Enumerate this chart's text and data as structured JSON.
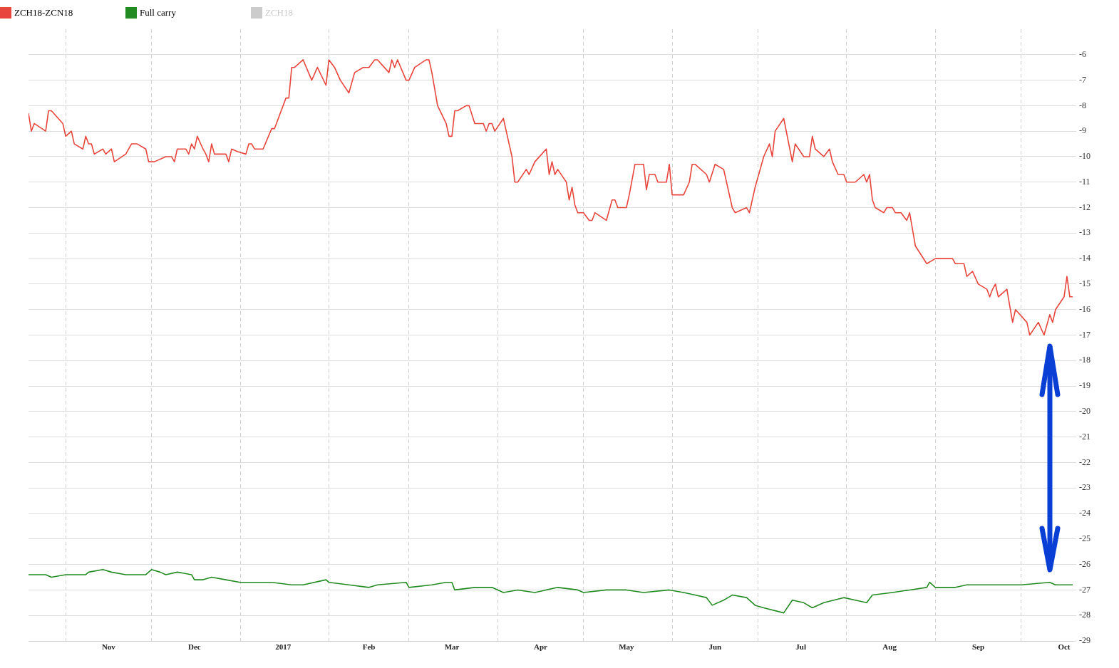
{
  "chart_data": {
    "type": "line",
    "legend": "top left",
    "grid": true,
    "marker": "none",
    "line_style": "solid",
    "xlim": [
      "2016-10-19",
      "2017-10-19"
    ],
    "xticks": [
      {
        "value": "2016-11-01",
        "label": null
      },
      {
        "value": "2016-11-16",
        "label": "Nov"
      },
      {
        "value": "2016-12-01",
        "label": null
      },
      {
        "value": "2016-12-16",
        "label": "Dec"
      },
      {
        "value": "2017-01-01",
        "label": null
      },
      {
        "value": "2017-01-16",
        "label": "2017"
      },
      {
        "value": "2017-02-01",
        "label": null
      },
      {
        "value": "2017-02-15",
        "label": "Feb"
      },
      {
        "value": "2017-03-01",
        "label": null
      },
      {
        "value": "2017-03-16",
        "label": "Mar"
      },
      {
        "value": "2017-04-01",
        "label": null
      },
      {
        "value": "2017-04-16",
        "label": "Apr"
      },
      {
        "value": "2017-05-01",
        "label": null
      },
      {
        "value": "2017-05-16",
        "label": "May"
      },
      {
        "value": "2017-06-01",
        "label": null
      },
      {
        "value": "2017-06-16",
        "label": "Jun"
      },
      {
        "value": "2017-07-01",
        "label": null
      },
      {
        "value": "2017-07-16",
        "label": "Jul"
      },
      {
        "value": "2017-08-01",
        "label": null
      },
      {
        "value": "2017-08-16",
        "label": "Aug"
      },
      {
        "value": "2017-09-01",
        "label": null
      },
      {
        "value": "2017-09-16",
        "label": "Sep"
      },
      {
        "value": "2017-10-01",
        "label": null
      },
      {
        "value": "2017-10-16",
        "label": "Oct"
      }
    ],
    "ylim": [
      -29,
      -5
    ],
    "yticks": [
      -6,
      -7,
      -8,
      -9,
      -10,
      -11,
      -12,
      -13,
      -14,
      -15,
      -16,
      -17,
      -18,
      -19,
      -20,
      -21,
      -22,
      -23,
      -24,
      -25,
      -26,
      -27,
      -28,
      -29
    ],
    "series": [
      {
        "name": "ZCH18-ZCN18",
        "color": "#e8453c",
        "x": [
          "2016-10-19",
          "2016-10-20",
          "2016-10-21",
          "2016-10-25",
          "2016-10-26",
          "2016-10-27",
          "2016-10-31",
          "2016-11-01",
          "2016-11-03",
          "2016-11-04",
          "2016-11-07",
          "2016-11-08",
          "2016-11-09",
          "2016-11-10",
          "2016-11-11",
          "2016-11-14",
          "2016-11-15",
          "2016-11-17",
          "2016-11-18",
          "2016-11-22",
          "2016-11-24",
          "2016-11-26",
          "2016-11-29",
          "2016-11-30",
          "2016-12-02",
          "2016-12-06",
          "2016-12-08",
          "2016-12-09",
          "2016-12-10",
          "2016-12-13",
          "2016-12-14",
          "2016-12-15",
          "2016-12-16",
          "2016-12-17",
          "2016-12-19",
          "2016-12-20",
          "2016-12-21",
          "2016-12-22",
          "2016-12-23",
          "2016-12-27",
          "2016-12-28",
          "2016-12-29",
          "2016-12-31",
          "2017-01-03",
          "2017-01-04",
          "2017-01-05",
          "2017-01-06",
          "2017-01-09",
          "2017-01-12",
          "2017-01-13",
          "2017-01-17",
          "2017-01-18",
          "2017-01-19",
          "2017-01-20",
          "2017-01-23",
          "2017-01-26",
          "2017-01-28",
          "2017-01-31",
          "2017-02-01",
          "2017-02-03",
          "2017-02-05",
          "2017-02-08",
          "2017-02-10",
          "2017-02-13",
          "2017-02-15",
          "2017-02-17",
          "2017-02-18",
          "2017-02-22",
          "2017-02-23",
          "2017-02-24",
          "2017-02-25",
          "2017-02-28",
          "2017-03-01",
          "2017-03-03",
          "2017-03-07",
          "2017-03-08",
          "2017-03-09",
          "2017-03-11",
          "2017-03-14",
          "2017-03-15",
          "2017-03-16",
          "2017-03-17",
          "2017-03-18",
          "2017-03-21",
          "2017-03-22",
          "2017-03-24",
          "2017-03-27",
          "2017-03-28",
          "2017-03-29",
          "2017-03-30",
          "2017-03-31",
          "2017-04-03",
          "2017-04-05",
          "2017-04-06",
          "2017-04-07",
          "2017-04-08",
          "2017-04-11",
          "2017-04-12",
          "2017-04-14",
          "2017-04-18",
          "2017-04-19",
          "2017-04-20",
          "2017-04-21",
          "2017-04-22",
          "2017-04-25",
          "2017-04-26",
          "2017-04-27",
          "2017-04-28",
          "2017-04-29",
          "2017-05-01",
          "2017-05-03",
          "2017-05-04",
          "2017-05-05",
          "2017-05-09",
          "2017-05-11",
          "2017-05-12",
          "2017-05-13",
          "2017-05-16",
          "2017-05-17",
          "2017-05-19",
          "2017-05-22",
          "2017-05-23",
          "2017-05-24",
          "2017-05-26",
          "2017-05-27",
          "2017-05-30",
          "2017-05-31",
          "2017-06-01",
          "2017-06-05",
          "2017-06-07",
          "2017-06-08",
          "2017-06-09",
          "2017-06-13",
          "2017-06-14",
          "2017-06-16",
          "2017-06-19",
          "2017-06-22",
          "2017-06-23",
          "2017-06-27",
          "2017-06-28",
          "2017-06-30",
          "2017-07-03",
          "2017-07-05",
          "2017-07-06",
          "2017-07-07",
          "2017-07-10",
          "2017-07-13",
          "2017-07-14",
          "2017-07-17",
          "2017-07-19",
          "2017-07-20",
          "2017-07-21",
          "2017-07-24",
          "2017-07-26",
          "2017-07-27",
          "2017-07-29",
          "2017-07-31",
          "2017-08-01",
          "2017-08-04",
          "2017-08-07",
          "2017-08-08",
          "2017-08-09",
          "2017-08-10",
          "2017-08-11",
          "2017-08-14",
          "2017-08-15",
          "2017-08-17",
          "2017-08-18",
          "2017-08-20",
          "2017-08-22",
          "2017-08-23",
          "2017-08-25",
          "2017-08-29",
          "2017-09-01",
          "2017-09-07",
          "2017-09-08",
          "2017-09-11",
          "2017-09-12",
          "2017-09-14",
          "2017-09-16",
          "2017-09-19",
          "2017-09-20",
          "2017-09-21",
          "2017-09-22",
          "2017-09-23",
          "2017-09-26",
          "2017-09-28",
          "2017-09-29",
          "2017-10-03",
          "2017-10-04",
          "2017-10-07",
          "2017-10-09",
          "2017-10-11",
          "2017-10-12",
          "2017-10-13",
          "2017-10-16",
          "2017-10-17",
          "2017-10-18",
          "2017-10-19"
        ],
        "values": [
          -8.3,
          -9.0,
          -8.7,
          -9.0,
          -8.2,
          -8.2,
          -8.7,
          -9.2,
          -9.0,
          -9.5,
          -9.7,
          -9.2,
          -9.5,
          -9.5,
          -9.9,
          -9.7,
          -9.9,
          -9.7,
          -10.2,
          -9.9,
          -9.5,
          -9.5,
          -9.7,
          -10.2,
          -10.2,
          -10.0,
          -10.0,
          -10.2,
          -9.7,
          -9.7,
          -9.9,
          -9.5,
          -9.7,
          -9.2,
          -9.7,
          -9.9,
          -10.2,
          -9.5,
          -9.9,
          -9.9,
          -10.2,
          -9.7,
          -9.8,
          -9.9,
          -9.5,
          -9.5,
          -9.7,
          -9.7,
          -8.9,
          -8.9,
          -7.7,
          -7.7,
          -6.5,
          -6.5,
          -6.2,
          -7.0,
          -6.5,
          -7.2,
          -6.2,
          -6.5,
          -7.0,
          -7.5,
          -6.7,
          -6.5,
          -6.5,
          -6.2,
          -6.2,
          -6.7,
          -6.2,
          -6.5,
          -6.2,
          -7.0,
          -7.0,
          -6.5,
          -6.2,
          -6.2,
          -6.7,
          -8.0,
          -8.7,
          -9.2,
          -9.2,
          -8.2,
          -8.2,
          -8.0,
          -8.0,
          -8.7,
          -8.7,
          -9.0,
          -8.7,
          -8.7,
          -9.0,
          -8.5,
          -9.5,
          -10.0,
          -11.0,
          -11.0,
          -10.5,
          -10.7,
          -10.2,
          -9.7,
          -10.7,
          -10.2,
          -10.7,
          -10.5,
          -11.0,
          -11.7,
          -11.2,
          -11.9,
          -12.2,
          -12.2,
          -12.5,
          -12.5,
          -12.2,
          -12.5,
          -11.7,
          -11.7,
          -12.0,
          -12.0,
          -11.5,
          -10.3,
          -10.3,
          -11.3,
          -10.7,
          -10.7,
          -11.0,
          -11.0,
          -10.3,
          -11.5,
          -11.5,
          -11.0,
          -10.3,
          -10.3,
          -10.7,
          -11.0,
          -10.3,
          -10.5,
          -12.0,
          -12.2,
          -12.0,
          -12.2,
          -11.2,
          -10.0,
          -9.5,
          -10.0,
          -9.0,
          -8.5,
          -10.2,
          -9.5,
          -10.0,
          -10.0,
          -9.2,
          -9.7,
          -10.0,
          -9.7,
          -10.2,
          -10.7,
          -10.7,
          -11.0,
          -11.0,
          -10.7,
          -11.0,
          -10.7,
          -11.7,
          -12.0,
          -12.2,
          -12.0,
          -12.0,
          -12.2,
          -12.2,
          -12.5,
          -12.2,
          -13.5,
          -14.2,
          -14.0,
          -14.0,
          -14.2,
          -14.2,
          -14.7,
          -14.5,
          -15.0,
          -15.2,
          -15.5,
          -15.2,
          -15.0,
          -15.5,
          -15.2,
          -16.5,
          -16.0,
          -16.5,
          -17.0,
          -16.5,
          -17.0,
          -16.2,
          -16.5,
          -16.0,
          -15.5,
          -14.7,
          -15.5,
          -15.5
        ]
      },
      {
        "name": "Full carry",
        "color": "#228b22",
        "x": [
          "2016-10-19",
          "2016-10-21",
          "2016-10-25",
          "2016-10-27",
          "2016-11-01",
          "2016-11-06",
          "2016-11-08",
          "2016-11-09",
          "2016-11-14",
          "2016-11-17",
          "2016-11-22",
          "2016-11-29",
          "2016-12-01",
          "2016-12-04",
          "2016-12-06",
          "2016-12-10",
          "2016-12-15",
          "2016-12-16",
          "2016-12-19",
          "2016-12-22",
          "2016-12-27",
          "2017-01-01",
          "2017-01-06",
          "2017-01-12",
          "2017-01-19",
          "2017-01-23",
          "2017-01-31",
          "2017-02-01",
          "2017-02-08",
          "2017-02-15",
          "2017-02-18",
          "2017-02-28",
          "2017-03-01",
          "2017-03-09",
          "2017-03-14",
          "2017-03-16",
          "2017-03-17",
          "2017-03-24",
          "2017-03-30",
          "2017-04-03",
          "2017-04-08",
          "2017-04-14",
          "2017-04-22",
          "2017-04-29",
          "2017-05-01",
          "2017-05-09",
          "2017-05-16",
          "2017-05-22",
          "2017-05-31",
          "2017-06-05",
          "2017-06-09",
          "2017-06-13",
          "2017-06-15",
          "2017-06-19",
          "2017-06-22",
          "2017-06-27",
          "2017-06-30",
          "2017-07-03",
          "2017-07-10",
          "2017-07-13",
          "2017-07-17",
          "2017-07-20",
          "2017-07-24",
          "2017-07-31",
          "2017-08-04",
          "2017-08-08",
          "2017-08-10",
          "2017-08-17",
          "2017-08-23",
          "2017-08-29",
          "2017-08-30",
          "2017-09-01",
          "2017-09-08",
          "2017-09-12",
          "2017-09-21",
          "2017-10-01",
          "2017-10-11",
          "2017-10-13",
          "2017-10-19"
        ],
        "values": [
          -26.4,
          -26.4,
          -26.4,
          -26.5,
          -26.4,
          -26.4,
          -26.4,
          -26.3,
          -26.2,
          -26.3,
          -26.4,
          -26.4,
          -26.2,
          -26.3,
          -26.4,
          -26.3,
          -26.4,
          -26.6,
          -26.6,
          -26.5,
          -26.6,
          -26.7,
          -26.7,
          -26.7,
          -26.8,
          -26.8,
          -26.6,
          -26.7,
          -26.8,
          -26.9,
          -26.8,
          -26.7,
          -26.9,
          -26.8,
          -26.7,
          -26.7,
          -27.0,
          -26.9,
          -26.9,
          -27.1,
          -27.0,
          -27.1,
          -26.9,
          -27.0,
          -27.1,
          -27.0,
          -27.0,
          -27.1,
          -27.0,
          -27.1,
          -27.2,
          -27.3,
          -27.6,
          -27.4,
          -27.2,
          -27.3,
          -27.6,
          -27.7,
          -27.9,
          -27.4,
          -27.5,
          -27.7,
          -27.5,
          -27.3,
          -27.4,
          -27.5,
          -27.2,
          -27.1,
          -27.0,
          -26.9,
          -26.7,
          -26.9,
          -26.9,
          -26.8,
          -26.8,
          -26.8,
          -26.7,
          -26.8,
          -26.8
        ]
      },
      {
        "name": "ZCH18",
        "color": "#cccccc"
      }
    ]
  }
}
